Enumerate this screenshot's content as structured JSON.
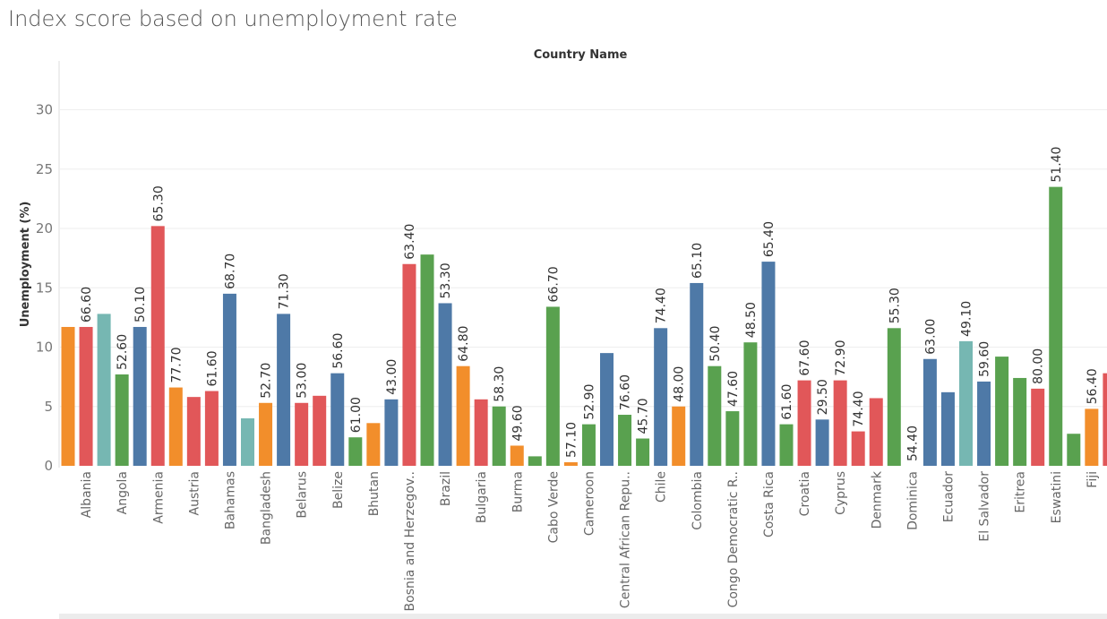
{
  "title": "Index score based on unemployment rate",
  "colors": {
    "orange": "#f28e2b",
    "red": "#e15759",
    "teal": "#76b7b2",
    "blue": "#4e79a7",
    "green": "#59a14f",
    "grid": "#eeeeee",
    "axis": "#dddddd"
  },
  "chart_data": {
    "type": "bar",
    "title": "Index score based on unemployment rate",
    "column_header": "Country Name",
    "ylabel": "Unemployment (%)",
    "xlabel": "",
    "ylim": [
      0,
      33
    ],
    "yticks": [
      0,
      5,
      10,
      15,
      20,
      25,
      30
    ],
    "grid": true,
    "category_labels": [
      "Albania",
      "Angola",
      "Armenia",
      "Austria",
      "Bahamas",
      "Bangladesh",
      "Belarus",
      "Belize",
      "Bhutan",
      "Bosnia and Herzegov..",
      "Brazil",
      "Bulgaria",
      "Burma",
      "Cabo Verde",
      "Cameroon",
      "Central African Repu..",
      "Chile",
      "Colombia",
      "Congo Democratic R..",
      "Costa Rica",
      "Croatia",
      "Cyprus",
      "Denmark",
      "Dominica",
      "Ecuador",
      "El Salvador",
      "Eritrea",
      "Eswatini",
      "Fiji"
    ],
    "bars": [
      {
        "value": 11.7,
        "color": "orange",
        "label": ""
      },
      {
        "value": 11.7,
        "color": "red",
        "label": "66.60"
      },
      {
        "value": 12.8,
        "color": "teal",
        "label": ""
      },
      {
        "value": 7.7,
        "color": "green",
        "label": "52.60"
      },
      {
        "value": 11.7,
        "color": "blue",
        "label": "50.10"
      },
      {
        "value": 20.2,
        "color": "red",
        "label": "65.30"
      },
      {
        "value": 6.6,
        "color": "orange",
        "label": "77.70"
      },
      {
        "value": 5.8,
        "color": "red",
        "label": ""
      },
      {
        "value": 6.3,
        "color": "red",
        "label": "61.60"
      },
      {
        "value": 14.5,
        "color": "blue",
        "label": "68.70"
      },
      {
        "value": 4.0,
        "color": "teal",
        "label": ""
      },
      {
        "value": 5.3,
        "color": "orange",
        "label": "52.70"
      },
      {
        "value": 12.8,
        "color": "blue",
        "label": "71.30"
      },
      {
        "value": 5.3,
        "color": "red",
        "label": "53.00"
      },
      {
        "value": 5.9,
        "color": "red",
        "label": ""
      },
      {
        "value": 7.8,
        "color": "blue",
        "label": "56.60"
      },
      {
        "value": 2.4,
        "color": "green",
        "label": "61.00"
      },
      {
        "value": 3.6,
        "color": "orange",
        "label": ""
      },
      {
        "value": 5.6,
        "color": "blue",
        "label": "43.00"
      },
      {
        "value": 17.0,
        "color": "red",
        "label": "63.40"
      },
      {
        "value": 17.8,
        "color": "green",
        "label": ""
      },
      {
        "value": 13.7,
        "color": "blue",
        "label": "53.30"
      },
      {
        "value": 8.4,
        "color": "orange",
        "label": "64.80"
      },
      {
        "value": 5.6,
        "color": "red",
        "label": ""
      },
      {
        "value": 5.0,
        "color": "green",
        "label": "58.30"
      },
      {
        "value": 1.7,
        "color": "orange",
        "label": "49.60"
      },
      {
        "value": 0.8,
        "color": "green",
        "label": ""
      },
      {
        "value": 13.4,
        "color": "green",
        "label": "66.70"
      },
      {
        "value": 0.3,
        "color": "orange",
        "label": "57.10"
      },
      {
        "value": 3.5,
        "color": "green",
        "label": "52.90"
      },
      {
        "value": 9.5,
        "color": "blue",
        "label": ""
      },
      {
        "value": 4.3,
        "color": "green",
        "label": "76.60"
      },
      {
        "value": 2.3,
        "color": "green",
        "label": "45.70"
      },
      {
        "value": 11.6,
        "color": "blue",
        "label": "74.40"
      },
      {
        "value": 5.0,
        "color": "orange",
        "label": "48.00"
      },
      {
        "value": 15.4,
        "color": "blue",
        "label": "65.10"
      },
      {
        "value": 8.4,
        "color": "green",
        "label": "50.40"
      },
      {
        "value": 4.6,
        "color": "green",
        "label": "47.60"
      },
      {
        "value": 10.4,
        "color": "green",
        "label": "48.50"
      },
      {
        "value": 17.2,
        "color": "blue",
        "label": "65.40"
      },
      {
        "value": 3.5,
        "color": "green",
        "label": "61.60"
      },
      {
        "value": 7.2,
        "color": "red",
        "label": "67.60"
      },
      {
        "value": 3.9,
        "color": "blue",
        "label": "29.50"
      },
      {
        "value": 7.2,
        "color": "red",
        "label": "72.90"
      },
      {
        "value": 2.9,
        "color": "red",
        "label": "74.40"
      },
      {
        "value": 5.7,
        "color": "red",
        "label": ""
      },
      {
        "value": 11.6,
        "color": "green",
        "label": "55.30"
      },
      {
        "value": 0.0,
        "color": "green",
        "label": "54.40"
      },
      {
        "value": 9.0,
        "color": "blue",
        "label": "63.00"
      },
      {
        "value": 6.2,
        "color": "blue",
        "label": ""
      },
      {
        "value": 10.5,
        "color": "teal",
        "label": "49.10"
      },
      {
        "value": 7.1,
        "color": "blue",
        "label": "59.60"
      },
      {
        "value": 9.2,
        "color": "green",
        "label": ""
      },
      {
        "value": 7.4,
        "color": "green",
        "label": ""
      },
      {
        "value": 6.5,
        "color": "red",
        "label": "80.00"
      },
      {
        "value": 23.5,
        "color": "green",
        "label": "51.40"
      },
      {
        "value": 2.7,
        "color": "green",
        "label": ""
      },
      {
        "value": 4.8,
        "color": "orange",
        "label": "56.40"
      },
      {
        "value": 7.8,
        "color": "red",
        "label": ""
      }
    ]
  }
}
